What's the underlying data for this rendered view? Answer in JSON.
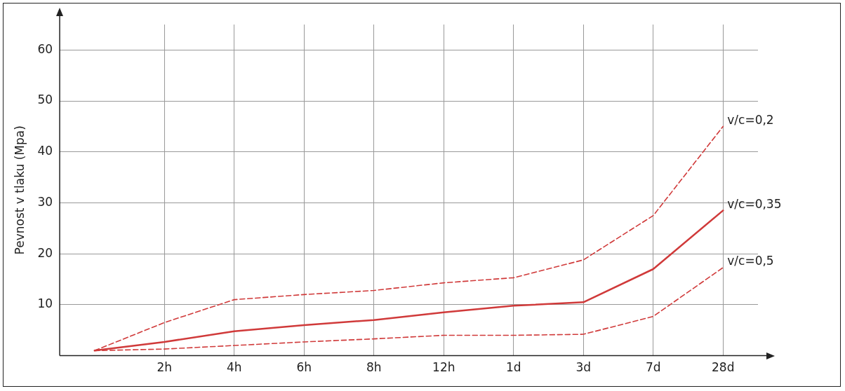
{
  "chart_data": {
    "type": "line",
    "ylabel": "Pevnost v tlaku (Mpa)",
    "categories": [
      null,
      "2h",
      "4h",
      "6h",
      "8h",
      "12h",
      "1d",
      "3d",
      "7d",
      "28d"
    ],
    "series": [
      {
        "name": "v/c=0,2",
        "color": "#d03a3a",
        "line_style": "dashed",
        "values": [
          1,
          6.5,
          11,
          12,
          12.8,
          14.3,
          15.3,
          18.8,
          27.5,
          45
        ]
      },
      {
        "name": "v/c=0,35",
        "color": "#d03a3a",
        "line_style": "solid",
        "values": [
          1,
          2.7,
          4.8,
          6,
          7,
          8.5,
          9.8,
          10.5,
          17,
          28.5
        ]
      },
      {
        "name": "v/c=0,5",
        "color": "#d03a3a",
        "line_style": "dashed",
        "values": [
          1,
          1.3,
          2,
          2.7,
          3.3,
          4,
          4,
          4.2,
          7.7,
          17.3
        ]
      }
    ],
    "ylim": [
      0,
      65
    ],
    "yticks": [
      10,
      20,
      30,
      40,
      50,
      60
    ],
    "grid": true,
    "legend": false,
    "marker": "none"
  }
}
